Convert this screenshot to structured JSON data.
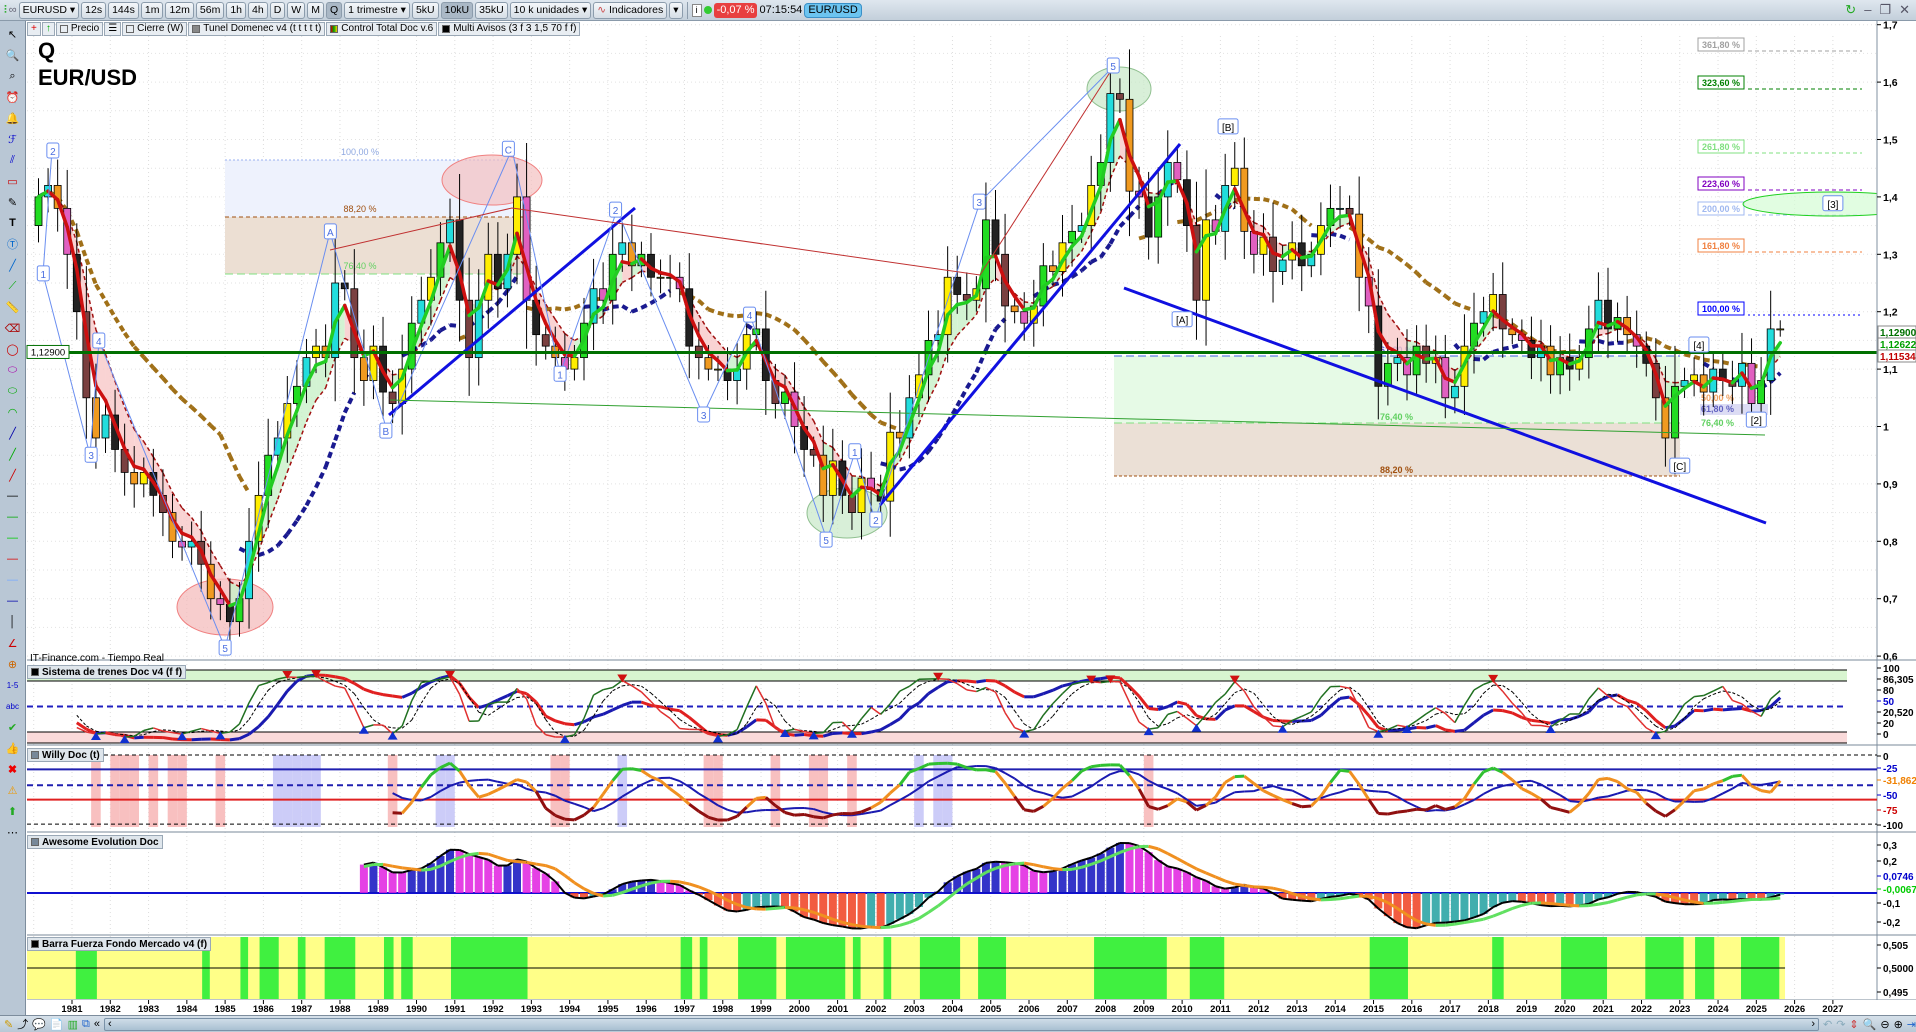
{
  "toolbar": {
    "symbol": "EURUSD",
    "timeframes": [
      "12s",
      "144s",
      "1m",
      "12m",
      "56m",
      "1h",
      "4h",
      "D",
      "W",
      "M",
      "Q"
    ],
    "active_timeframe": "Q",
    "period": "1 trimestre",
    "units": [
      "5kU",
      "10kU",
      "35kU"
    ],
    "active_unit": "10kU",
    "units_select": "10 k unidades",
    "indicators": "Indicadores",
    "change": "-0,07 %",
    "time": "07:15:54",
    "pair": "EUR/USD"
  },
  "legend": {
    "price": "Precio",
    "close": "Cierre (W)",
    "tunnel": "Tunel Domenec v4 (t t t t t)",
    "control": "Control Total Doc v.6",
    "alerts": "Multi Avisos (3 f 3 1,5 70 f f)"
  },
  "chart": {
    "period_label": "Q",
    "title": "EUR/USD",
    "source": "IT-Finance.com - Tiempo Real",
    "y_ticks": [
      "1,7",
      "1,6",
      "1,5",
      "1,4",
      "1,3",
      "1,2",
      "1,1",
      "1",
      "0,9",
      "0,8",
      "0,7",
      "0,6"
    ],
    "x_ticks": [
      "1981",
      "1982",
      "1983",
      "1984",
      "1985",
      "1986",
      "1987",
      "1988",
      "1989",
      "1990",
      "1991",
      "1992",
      "1993",
      "1994",
      "1995",
      "1996",
      "1997",
      "1998",
      "1999",
      "2000",
      "2001",
      "2002",
      "2003",
      "2004",
      "2005",
      "2006",
      "2007",
      "2008",
      "2009",
      "2010",
      "2011",
      "2012",
      "2013",
      "2014",
      "2015",
      "2016",
      "2017",
      "2018",
      "2019",
      "2020",
      "2021",
      "2022",
      "2023",
      "2024",
      "2025",
      "2026",
      "2027"
    ],
    "hline": {
      "price": 1.129,
      "label": "1,12900",
      "color": "#007000"
    },
    "price_labels": [
      {
        "text": "1,12900",
        "color": "#007000"
      },
      {
        "text": "1,12622",
        "color": "#00a000"
      },
      {
        "text": "1,11534",
        "color": "#c00000"
      }
    ],
    "quarterly_closes_from_1980": [
      1.4,
      1.42,
      1.38,
      1.3,
      1.2,
      1.05,
      0.98,
      1.02,
      0.96,
      0.92,
      0.9,
      0.92,
      0.88,
      0.85,
      0.8,
      0.79,
      0.8,
      0.76,
      0.7,
      0.69,
      0.66,
      0.7,
      0.8,
      0.88,
      0.95,
      0.98,
      1.04,
      1.07,
      1.12,
      1.14,
      1.12,
      1.25,
      1.24,
      1.12,
      1.08,
      1.14,
      1.06,
      1.04,
      1.1,
      1.18,
      1.22,
      1.26,
      1.32,
      1.36,
      1.22,
      1.12,
      1.22,
      1.3,
      1.24,
      1.3,
      1.4,
      1.22,
      1.16,
      1.14,
      1.12,
      1.1,
      1.12,
      1.18,
      1.24,
      1.22,
      1.3,
      1.32,
      1.28,
      1.3,
      1.26,
      1.26,
      1.26,
      1.24,
      1.14,
      1.12,
      1.1,
      1.1,
      1.08,
      1.1,
      1.16,
      1.17,
      1.08,
      1.04,
      1.06,
      1.0,
      0.96,
      0.95,
      0.88,
      0.94,
      0.88,
      0.85,
      0.91,
      0.89,
      0.87,
      0.99,
      0.98,
      1.05,
      1.09,
      1.15,
      1.16,
      1.26,
      1.23,
      1.22,
      1.24,
      1.36,
      1.3,
      1.21,
      1.2,
      1.18,
      1.21,
      1.28,
      1.27,
      1.32,
      1.34,
      1.35,
      1.42,
      1.46,
      1.58,
      1.57,
      1.41,
      1.4,
      1.33,
      1.4,
      1.46,
      1.43,
      1.35,
      1.22,
      1.36,
      1.34,
      1.42,
      1.45,
      1.34,
      1.3,
      1.33,
      1.27,
      1.29,
      1.32,
      1.28,
      1.3,
      1.35,
      1.38,
      1.38,
      1.37,
      1.26,
      1.21,
      1.07,
      1.11,
      1.12,
      1.09,
      1.14,
      1.11,
      1.12,
      1.05,
      1.07,
      1.14,
      1.18,
      1.2,
      1.23,
      1.17,
      1.16,
      1.15,
      1.12,
      1.14,
      1.09,
      1.12,
      1.1,
      1.12,
      1.17,
      1.22,
      1.17,
      1.19,
      1.16,
      1.14,
      1.11,
      1.05,
      0.98,
      1.07,
      1.08,
      1.09,
      1.06,
      1.1,
      1.08,
      1.07,
      1.11,
      1.04,
      1.08,
      1.17,
      1.17
    ],
    "waves": [
      {
        "t": "2",
        "yr": 1980.5,
        "p": 1.48
      },
      {
        "t": "1",
        "yr": 1980.25,
        "p": 1.266
      },
      {
        "t": "4",
        "yr": 1981.7,
        "p": 1.149
      },
      {
        "t": "3",
        "yr": 1981.5,
        "p": 0.95
      },
      {
        "t": "5",
        "yr": 1985.0,
        "p": 0.614
      },
      {
        "t": "A",
        "yr": 1987.75,
        "p": 1.339
      },
      {
        "t": "B",
        "yr": 1989.2,
        "p": 0.992
      },
      {
        "t": "C",
        "yr": 1992.4,
        "p": 1.483
      },
      {
        "t": "1",
        "yr": 1993.75,
        "p": 1.091
      },
      {
        "t": "2",
        "yr": 1995.2,
        "p": 1.377
      },
      {
        "t": "3",
        "yr": 1997.5,
        "p": 1.02
      },
      {
        "t": "4",
        "yr": 1998.7,
        "p": 1.194
      },
      {
        "t": "5",
        "yr": 2000.7,
        "p": 0.802
      },
      {
        "t": "1",
        "yr": 2001.45,
        "p": 0.956
      },
      {
        "t": "2",
        "yr": 2002.0,
        "p": 0.837
      },
      {
        "t": "3",
        "yr": 2004.7,
        "p": 1.391
      },
      {
        "t": "5",
        "yr": 2008.2,
        "p": 1.628
      },
      {
        "t": "[B]",
        "yr": 2011.2,
        "p": 1.522
      },
      {
        "t": "[A]",
        "yr": 2010.0,
        "p": 1.186
      },
      {
        "t": "[C]",
        "yr": 2023.0,
        "p": 0.931
      },
      {
        "t": "[4]",
        "yr": 2023.5,
        "p": 1.142
      },
      {
        "t": "[2]",
        "yr": 2025.0,
        "p": 1.011
      },
      {
        "t": "[3]",
        "yr": 2027.0,
        "p": 1.388
      }
    ],
    "fib_left": [
      {
        "t": "100,00 %",
        "c": "#8fa8e0"
      },
      {
        "t": "88,20 %",
        "c": "#a05010"
      },
      {
        "t": "76,40 %",
        "c": "#60d060"
      }
    ],
    "fib_right_zone": [
      {
        "t": "61,80 %",
        "c": "#6060e0"
      },
      {
        "t": "76,40 %",
        "c": "#60d060"
      },
      {
        "t": "88,20 %",
        "c": "#a05010"
      }
    ],
    "fib_small": [
      {
        "t": "50,00 %",
        "c": "#f0a060"
      },
      {
        "t": "61,80 %",
        "c": "#6060c0"
      },
      {
        "t": "76,40 %",
        "c": "#60d060"
      }
    ],
    "fib_ext": [
      {
        "t": "361,80 %",
        "c": "#a0a0a0"
      },
      {
        "t": "323,60 %",
        "c": "#008000"
      },
      {
        "t": "261,80 %",
        "c": "#80e080"
      },
      {
        "t": "223,60 %",
        "c": "#8000c0"
      },
      {
        "t": "200,00 %",
        "c": "#a0b8f0"
      },
      {
        "t": "161,80 %",
        "c": "#f08040"
      },
      {
        "t": "100,00 %",
        "c": "#0000ff"
      }
    ]
  },
  "panels": {
    "trains": {
      "title": "Sistema de trenes Doc v4 (f f)",
      "labels": [
        "100",
        "86,305",
        "80",
        "50",
        "20,520",
        "20",
        "0"
      ]
    },
    "willy": {
      "title": "Willy Doc (t)",
      "labels": [
        "0",
        "-25",
        "-31,862",
        "-50",
        "-75",
        "-100"
      ]
    },
    "awesome": {
      "title": "Awesome Evolution Doc",
      "labels": [
        "0,3",
        "0,2",
        "0,0746",
        "-0,0067",
        "-0,1",
        "-0,2"
      ]
    },
    "barra": {
      "title": "Barra Fuerza Fondo Mercado v4 (f)",
      "labels": [
        "0,505",
        "0,5000",
        "0,495"
      ],
      "green_ranges": [
        [
          1981.1,
          1981.65
        ],
        [
          1984.4,
          1984.6
        ],
        [
          1985.4,
          1985.6
        ],
        [
          1985.9,
          1986.4
        ],
        [
          1986.9,
          1987.1
        ],
        [
          1987.6,
          1988.4
        ],
        [
          1989.15,
          1989.4
        ],
        [
          1989.6,
          1989.9
        ],
        [
          1990.9,
          1992.9
        ],
        [
          1996.9,
          1997.2
        ],
        [
          1997.4,
          1997.6
        ],
        [
          1998.4,
          1999.4
        ],
        [
          1999.65,
          2001.2
        ],
        [
          2001.4,
          2001.6
        ],
        [
          2002.2,
          2002.4
        ],
        [
          2003.15,
          2004.2
        ],
        [
          2004.67,
          2005.4
        ],
        [
          2007.7,
          2009.6
        ],
        [
          2010.2,
          2011.1
        ],
        [
          2014.9,
          2015.9
        ],
        [
          2018.1,
          2018.4
        ],
        [
          2019.9,
          2021.1
        ],
        [
          2022.1,
          2023.1
        ],
        [
          2023.4,
          2023.9
        ],
        [
          2024.6,
          2025.6
        ]
      ]
    }
  }
}
